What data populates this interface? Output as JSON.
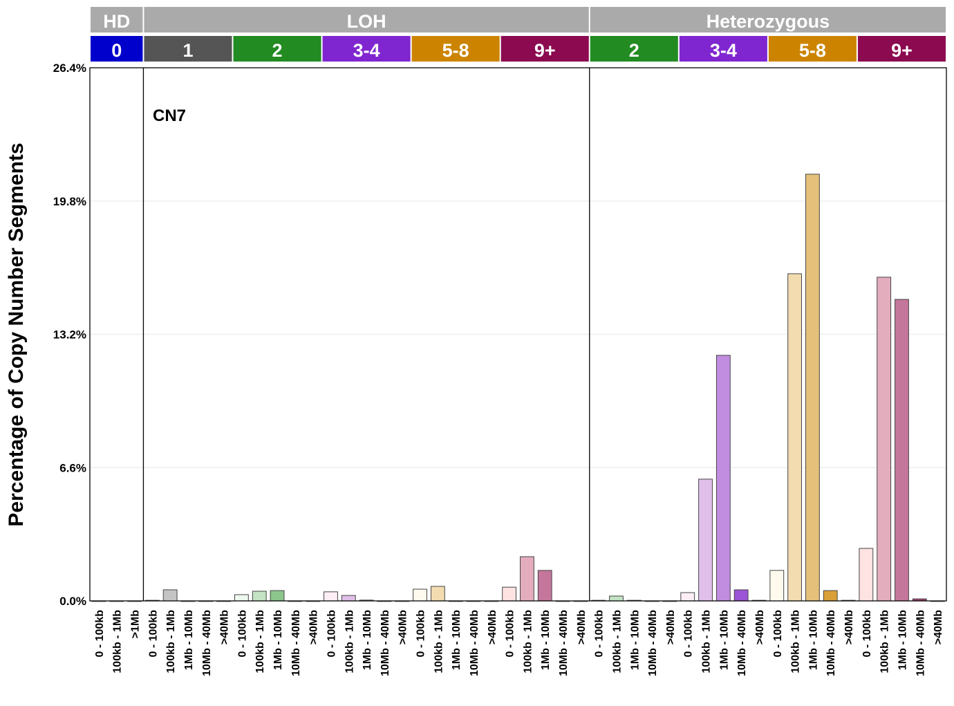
{
  "chart_data": {
    "type": "bar",
    "ylabel": "Percentage of Copy Number Segments",
    "ylim": [
      0,
      26.4
    ],
    "yticks": [
      "0.0%",
      "6.6%",
      "13.2%",
      "19.8%",
      "26.4%"
    ],
    "ytick_values": [
      0,
      6.6,
      13.2,
      19.8,
      26.4
    ],
    "grid": true,
    "annotation": "CN7",
    "top_groups": [
      {
        "label": "HD",
        "count": 3,
        "color": "#aaaaaa"
      },
      {
        "label": "LOH",
        "count": 25,
        "color": "#aaaaaa"
      },
      {
        "label": "Heterozygous",
        "count": 20,
        "color": "#aaaaaa"
      }
    ],
    "cn_groups": [
      {
        "label": "0",
        "count": 3,
        "color": "#0000cc",
        "shades": [
          "#0000cc",
          "#0000cc",
          "#0000cc"
        ]
      },
      {
        "label": "1",
        "count": 5,
        "color": "#555555",
        "shades": [
          "#f0f0f0",
          "#c4c4c4",
          "#a0a0a0",
          "#777777",
          "#555555"
        ]
      },
      {
        "label": "2",
        "count": 5,
        "color": "#228b22",
        "shades": [
          "#edf8ef",
          "#c3e3c4",
          "#8cc68c",
          "#3f9a3f",
          "#1f6f1f"
        ]
      },
      {
        "label": "3-4",
        "count": 5,
        "color": "#8026d0",
        "shades": [
          "#fdeef5",
          "#e0bfea",
          "#c08de0",
          "#9b55d6",
          "#6f2ca0"
        ]
      },
      {
        "label": "5-8",
        "count": 5,
        "color": "#cc8400",
        "shades": [
          "#fffaee",
          "#f2dcb0",
          "#e5c07a",
          "#d9a03a",
          "#b77a10"
        ]
      },
      {
        "label": "9+",
        "count": 5,
        "color": "#8b0a50",
        "shades": [
          "#ffe2e2",
          "#e3adbd",
          "#c5769b",
          "#a33f6f",
          "#7d1040"
        ]
      },
      {
        "label": "2",
        "count": 5,
        "color": "#228b22",
        "shades": [
          "#edf8ef",
          "#c3e3c4",
          "#8cc68c",
          "#3f9a3f",
          "#1f6f1f"
        ]
      },
      {
        "label": "3-4",
        "count": 5,
        "color": "#8026d0",
        "shades": [
          "#fdeef5",
          "#e0bfea",
          "#c08de0",
          "#9b55d6",
          "#6f2ca0"
        ]
      },
      {
        "label": "5-8",
        "count": 5,
        "color": "#cc8400",
        "shades": [
          "#fffaee",
          "#f2dcb0",
          "#e5c07a",
          "#d9a03a",
          "#b77a10"
        ]
      },
      {
        "label": "9+",
        "count": 5,
        "color": "#8b0a50",
        "shades": [
          "#ffe2e2",
          "#e3adbd",
          "#c5769b",
          "#a33f6f",
          "#7d1040"
        ]
      }
    ],
    "categories": [
      "0 - 100kb",
      "100kb - 1Mb",
      ">1Mb",
      "0 - 100kb",
      "100kb - 1Mb",
      "1Mb - 10Mb",
      "10Mb - 40Mb",
      ">40Mb",
      "0 - 100kb",
      "100kb - 1Mb",
      "1Mb - 10Mb",
      "10Mb - 40Mb",
      ">40Mb",
      "0 - 100kb",
      "100kb - 1Mb",
      "1Mb - 10Mb",
      "10Mb - 40Mb",
      ">40Mb",
      "0 - 100kb",
      "100kb - 1Mb",
      "1Mb - 10Mb",
      "10Mb - 40Mb",
      ">40Mb",
      "0 - 100kb",
      "100kb - 1Mb",
      "1Mb - 10Mb",
      "10Mb - 40Mb",
      ">40Mb",
      "0 - 100kb",
      "100kb - 1Mb",
      "1Mb - 10Mb",
      "10Mb - 40Mb",
      ">40Mb",
      "0 - 100kb",
      "100kb - 1Mb",
      "1Mb - 10Mb",
      "10Mb - 40Mb",
      ">40Mb",
      "0 - 100kb",
      "100kb - 1Mb",
      "1Mb - 10Mb",
      "10Mb - 40Mb",
      ">40Mb",
      "0 - 100kb",
      "100kb - 1Mb",
      "1Mb - 10Mb",
      "10Mb - 40Mb",
      ">40Mb"
    ],
    "values": [
      0,
      0,
      0,
      0.03,
      0.55,
      0,
      0,
      0,
      0.31,
      0.48,
      0.51,
      0,
      0,
      0.45,
      0.27,
      0.04,
      0,
      0,
      0.58,
      0.72,
      0,
      0,
      0,
      0.68,
      2.19,
      1.51,
      0,
      0,
      0.03,
      0.24,
      0.03,
      0,
      0,
      0.41,
      6.03,
      12.16,
      0.55,
      0.03,
      1.51,
      16.2,
      21.13,
      0.51,
      0.03,
      2.6,
      16.03,
      14.93,
      0.1,
      0
    ]
  }
}
